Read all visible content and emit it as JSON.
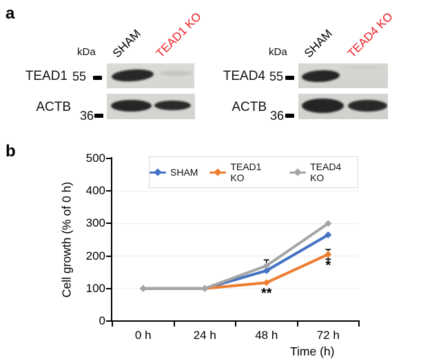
{
  "colors": {
    "sham": "#4472c4",
    "tead1_ko": "#ed7d31",
    "tead4_ko": "#a5a5a5",
    "ko_text": "#ed1c24",
    "lane_text": "#000000",
    "grid": "#ececec",
    "legend_border": "#d9d9d9",
    "blot_bg_left": "#d9d8d4",
    "blot_bg_right": "#d5d4d0",
    "band_dark": "#282828",
    "band_faint": "#c3c3c1"
  },
  "panel_a": {
    "label": "a",
    "groups": [
      {
        "kda_label": "kDa",
        "lanes": [
          {
            "label": "SHAM",
            "is_ko": false
          },
          {
            "label": "TEAD1 KO",
            "is_ko": true
          }
        ],
        "rows": [
          {
            "protein": "TEAD1",
            "mass": "55"
          },
          {
            "protein": "ACTB",
            "mass": "36"
          }
        ]
      },
      {
        "kda_label": "kDa",
        "lanes": [
          {
            "label": "SHAM",
            "is_ko": false
          },
          {
            "label": "TEAD4 KO",
            "is_ko": true
          }
        ],
        "rows": [
          {
            "protein": "TEAD4",
            "mass": "55"
          },
          {
            "protein": "ACTB",
            "mass": "36"
          }
        ]
      }
    ]
  },
  "panel_b": {
    "label": "b"
  },
  "chart_data": {
    "type": "line",
    "x": [
      "0 h",
      "24 h",
      "48 h",
      "72 h"
    ],
    "series": [
      {
        "name": "SHAM",
        "color": "#4472c4",
        "values": [
          100,
          100,
          155,
          265
        ]
      },
      {
        "name": "TEAD1 KO",
        "color": "#ed7d31",
        "values": [
          100,
          100,
          118,
          205
        ]
      },
      {
        "name": "TEAD4 KO",
        "color": "#a5a5a5",
        "values": [
          100,
          100,
          170,
          300
        ]
      }
    ],
    "error_bars": [
      {
        "series": "TEAD4 KO",
        "x_index": 2,
        "value": 170,
        "plus_minus": 18
      },
      {
        "series": "TEAD1 KO",
        "x_index": 3,
        "value": 205,
        "plus_minus": 15
      }
    ],
    "annotations": [
      {
        "text": "**",
        "x_index": 2,
        "y": 72
      },
      {
        "text": "*",
        "x_index": 3,
        "y": 158
      }
    ],
    "title": "",
    "xlabel": "Time (h)",
    "ylabel": "Cell growth (% of 0 h)",
    "ylim": [
      0,
      500
    ],
    "yticks": [
      0,
      100,
      200,
      300,
      400,
      500
    ],
    "grid": "horizontal-light",
    "legend_position": "top-inside",
    "marker": "diamond"
  }
}
